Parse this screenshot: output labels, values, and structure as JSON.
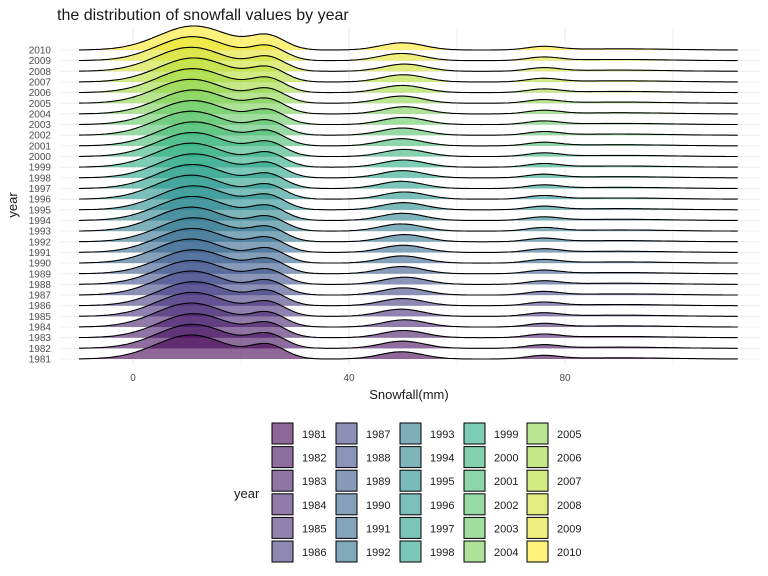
{
  "chart_data": {
    "type": "ridgeline",
    "title": "the distribution of snowfall values by year",
    "xlabel": "Snowfall(mm)",
    "ylabel": "year",
    "xlim": [
      -10,
      112
    ],
    "x_ticks": [
      0,
      40,
      80
    ],
    "grid": true,
    "legend_title": "year",
    "legend_position": "bottom",
    "categories": [
      "1981",
      "1982",
      "1983",
      "1984",
      "1985",
      "1986",
      "1987",
      "1988",
      "1989",
      "1990",
      "1991",
      "1992",
      "1993",
      "1994",
      "1995",
      "1996",
      "1997",
      "1998",
      "1999",
      "2000",
      "2001",
      "2002",
      "2003",
      "2004",
      "2005",
      "2006",
      "2007",
      "2008",
      "2009",
      "2010"
    ],
    "density_components": [
      {
        "mean": 11,
        "sd": 6.5,
        "weight": 1.0
      },
      {
        "mean": 25,
        "sd": 3.2,
        "weight": 0.55
      },
      {
        "mean": 50,
        "sd": 4.0,
        "weight": 0.3
      },
      {
        "mean": 76,
        "sd": 3.0,
        "weight": 0.14
      },
      {
        "mean": 90,
        "sd": 9.0,
        "weight": 0.05
      }
    ],
    "colors": {
      "palette": "viridis",
      "fill_opacity": 0.6,
      "outline": "#000000",
      "grid": "#ebebeb"
    }
  }
}
